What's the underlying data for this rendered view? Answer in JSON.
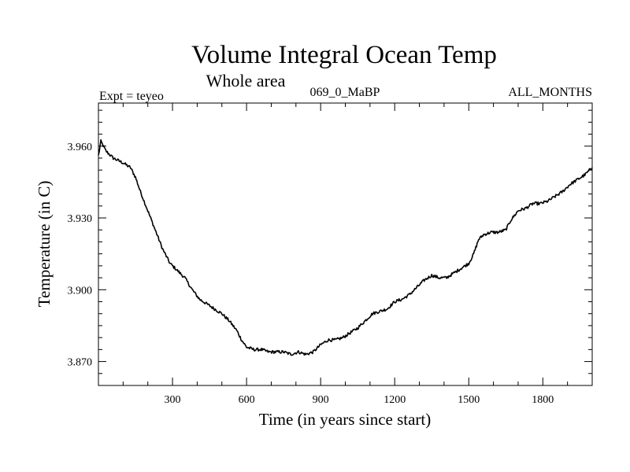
{
  "chart_data": {
    "type": "line",
    "title": "Volume Integral Ocean Temp",
    "subtitle": "Whole area",
    "annotations": {
      "left": "Expt = teyeo",
      "center": "069_0_MaBP",
      "right": "ALL_MONTHS"
    },
    "xlabel": "Time (in years since start)",
    "ylabel": "Temperature (in C)",
    "xlim": [
      0,
      2000
    ],
    "ylim": [
      3.86,
      3.978
    ],
    "x_ticks": [
      300,
      600,
      900,
      1200,
      1500,
      1800
    ],
    "x_tick_labels": [
      "300",
      "600",
      "900",
      "1200",
      "1500",
      "1800"
    ],
    "y_ticks": [
      3.87,
      3.9,
      3.93,
      3.96
    ],
    "y_tick_labels": [
      "3.870",
      "3.900",
      "3.930",
      "3.960"
    ],
    "series": [
      {
        "name": "Volume Integral Ocean Temp",
        "color": "#000000",
        "x": [
          0,
          10,
          30,
          60,
          100,
          130,
          150,
          170,
          200,
          230,
          260,
          290,
          320,
          350,
          380,
          410,
          440,
          470,
          500,
          530,
          560,
          580,
          600,
          630,
          660,
          690,
          720,
          750,
          780,
          810,
          840,
          870,
          900,
          930,
          960,
          990,
          1020,
          1050,
          1080,
          1110,
          1140,
          1170,
          1200,
          1230,
          1260,
          1290,
          1320,
          1350,
          1380,
          1410,
          1440,
          1470,
          1500,
          1520,
          1540,
          1560,
          1590,
          1620,
          1650,
          1670,
          1700,
          1730,
          1760,
          1790,
          1820,
          1850,
          1880,
          1910,
          1940,
          1970,
          2000
        ],
        "y": [
          3.956,
          3.962,
          3.958,
          3.955,
          3.953,
          3.951,
          3.947,
          3.941,
          3.933,
          3.925,
          3.917,
          3.911,
          3.908,
          3.905,
          3.9,
          3.896,
          3.894,
          3.892,
          3.89,
          3.887,
          3.883,
          3.879,
          3.876,
          3.875,
          3.875,
          3.874,
          3.874,
          3.874,
          3.873,
          3.874,
          3.873,
          3.874,
          3.877,
          3.879,
          3.879,
          3.88,
          3.882,
          3.884,
          3.887,
          3.89,
          3.891,
          3.892,
          3.895,
          3.896,
          3.898,
          3.901,
          3.904,
          3.906,
          3.905,
          3.905,
          3.907,
          3.909,
          3.911,
          3.915,
          3.921,
          3.923,
          3.924,
          3.924,
          3.925,
          3.929,
          3.933,
          3.934,
          3.936,
          3.936,
          3.937,
          3.939,
          3.941,
          3.944,
          3.946,
          3.948,
          3.951
        ]
      }
    ]
  }
}
